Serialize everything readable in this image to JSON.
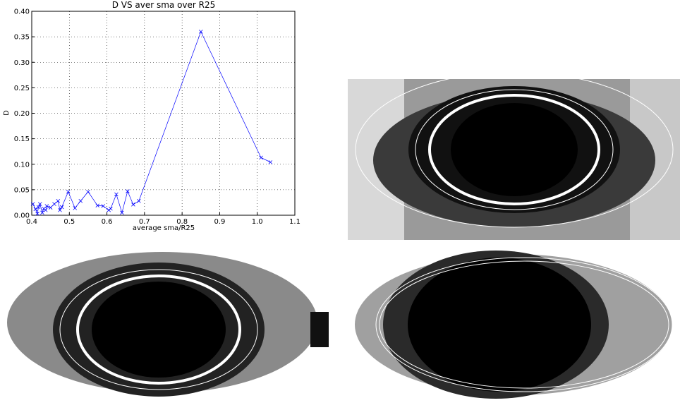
{
  "chart_data": {
    "type": "line",
    "title": "D VS aver sma over R25",
    "x_label": "average sma/R25",
    "y_label": "D",
    "x": [
      0.403,
      0.41,
      0.415,
      0.418,
      0.422,
      0.428,
      0.432,
      0.437,
      0.44,
      0.45,
      0.46,
      0.47,
      0.475,
      0.48,
      0.497,
      0.515,
      0.53,
      0.55,
      0.575,
      0.59,
      0.605,
      0.61,
      0.625,
      0.64,
      0.655,
      0.67,
      0.685,
      0.85,
      1.01,
      1.035
    ],
    "series": [
      {
        "color": "#0000ff",
        "values": [
          0.022,
          0.012,
          0.003,
          0.016,
          0.022,
          0.005,
          0.013,
          0.01,
          0.018,
          0.015,
          0.022,
          0.028,
          0.01,
          0.016,
          0.046,
          0.014,
          0.028,
          0.046,
          0.019,
          0.018,
          0.01,
          0.013,
          0.041,
          0.005,
          0.047,
          0.021,
          0.028,
          0.36,
          0.113,
          0.104
        ]
      }
    ],
    "xlim": [
      0.4,
      1.1
    ],
    "ylim": [
      0,
      0.4
    ],
    "xticks": [
      0.4,
      0.5,
      0.6,
      0.7,
      0.8,
      0.9,
      {
        "value": 1,
        "label": "1.0"
      },
      1.1
    ],
    "yticks": [
      {
        "value": 0,
        "label": "0.00"
      },
      0.05,
      {
        "value": 0.1,
        "label": "0.10"
      },
      0.15,
      {
        "value": 0.2,
        "label": "0.20"
      },
      0.25,
      {
        "value": 0.3,
        "label": "0.30"
      },
      0.35,
      {
        "value": 0.4,
        "label": "0.40"
      }
    ],
    "grid": true
  }
}
